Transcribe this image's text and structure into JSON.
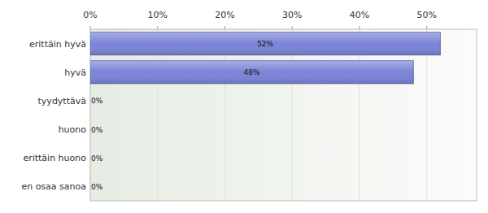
{
  "chart_data": {
    "type": "bar",
    "orientation": "horizontal",
    "categories": [
      "erittäin hyvä",
      "hyvä",
      "tyydyttävä",
      "huono",
      "erittäin huono",
      "en osaa sanoa"
    ],
    "values": [
      52,
      48,
      0,
      0,
      0,
      0
    ],
    "value_labels": [
      "52%",
      "48%",
      "0%",
      "0%",
      "0%",
      "0%"
    ],
    "color": "#7b83d6",
    "xlim": [
      0,
      57.4
    ],
    "xticks": [
      {
        "value": 0,
        "label": "0%"
      },
      {
        "value": 10,
        "label": "10%"
      },
      {
        "value": 20,
        "label": "20%"
      },
      {
        "value": 30,
        "label": "30%"
      },
      {
        "value": 40,
        "label": "40%"
      },
      {
        "value": 50,
        "label": "50%"
      }
    ],
    "grid": true,
    "data_labels": true
  }
}
